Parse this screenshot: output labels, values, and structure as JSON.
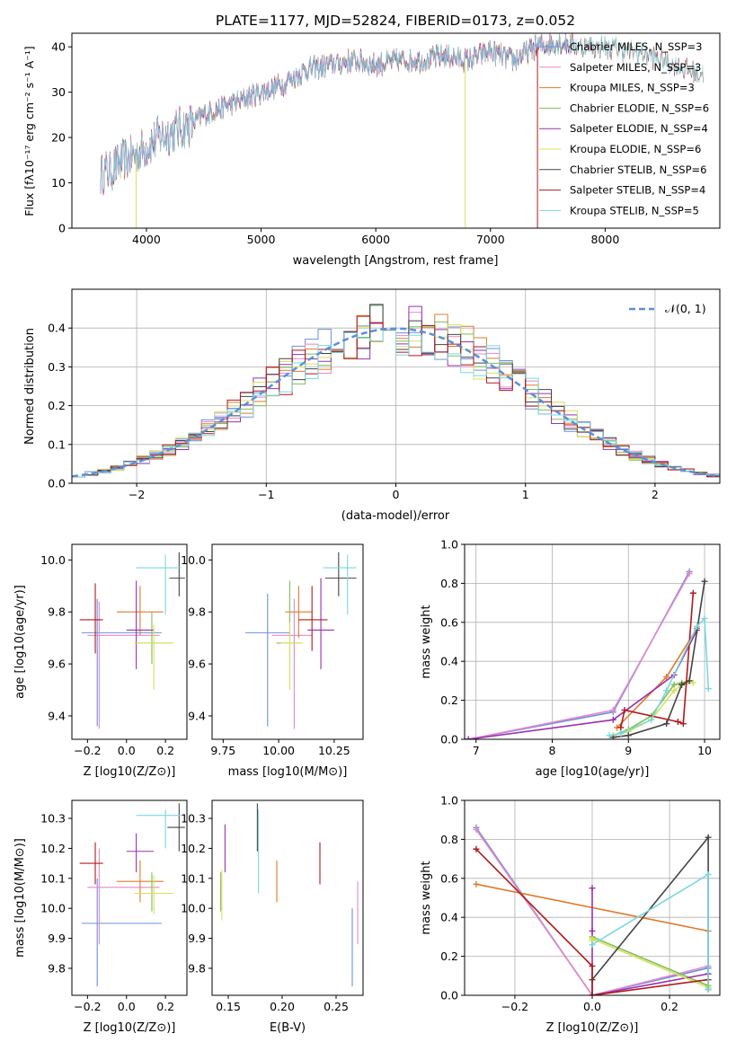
{
  "colors": {
    "Chabrier MILES": "#6b8fe0",
    "Salpeter MILES": "#e48ac8",
    "Kroupa MILES": "#e07a2a",
    "Chabrier ELODIE": "#7fbf5a",
    "Salpeter ELODIE": "#9b30b0",
    "Kroupa ELODIE": "#d8e05a",
    "Chabrier STELIB": "#444444",
    "Salpeter STELIB": "#b01a1a",
    "Kroupa STELIB": "#7ad8e0",
    "gauss": "#5b8fd9"
  },
  "chart_data": [
    {
      "type": "line",
      "title": "PLATE=1177, MJD=52824, FIBERID=0173, z=0.052",
      "xlabel": "wavelength [Angstrom, rest frame]",
      "ylabel": "Flux [fλ10⁻¹⁷ erg cm⁻² s⁻¹ A⁻¹]",
      "xlim": [
        3350,
        9000
      ],
      "ylim": [
        0,
        43
      ],
      "xticks": [
        "4000",
        "5000",
        "6000",
        "7000",
        "8000"
      ],
      "yticks": [
        "0",
        "10",
        "20",
        "30",
        "40"
      ],
      "legend": [
        "Chabrier MILES, N_SSP=3",
        "Salpeter MILES, N_SSP=3",
        "Kroupa MILES, N_SSP=3",
        "Chabrier ELODIE, N_SSP=6",
        "Salpeter ELODIE, N_SSP=4",
        "Kroupa ELODIE, N_SSP=6",
        "Chabrier STELIB, N_SSP=6",
        "Salpeter STELIB, N_SSP=4",
        "Kroupa STELIB, N_SSP=5"
      ],
      "continuum": {
        "x": [
          3600,
          3700,
          3800,
          3900,
          4000,
          4100,
          4200,
          4300,
          4400,
          4500,
          4600,
          4800,
          5000,
          5200,
          5400,
          5600,
          5800,
          6000,
          6200,
          6400,
          6600,
          6800,
          7000,
          7200,
          7400,
          7600,
          7800,
          8000,
          8200,
          8400,
          8600,
          8800
        ],
        "y": [
          12,
          13,
          15,
          16,
          18,
          20,
          21,
          22,
          23,
          25,
          26,
          28,
          30,
          32,
          35,
          36,
          37,
          36,
          37,
          37,
          38,
          37,
          39,
          37,
          40,
          41,
          40,
          40,
          39,
          38,
          36,
          34
        ]
      },
      "legend_position": "upper right"
    },
    {
      "type": "line",
      "xlabel": "(data-model)/error",
      "ylabel": "Normed distribution",
      "xlim": [
        -2.5,
        2.5
      ],
      "ylim": [
        0,
        0.5
      ],
      "xticks": [
        "−2",
        "−1",
        "0",
        "1",
        "2"
      ],
      "yticks": [
        "0.0",
        "0.1",
        "0.2",
        "0.3",
        "0.4"
      ],
      "gauss_label": "𝒩(0, 1)",
      "grid": true,
      "legend_position": "upper right"
    },
    {
      "type": "scatter",
      "xlabel": "Z [log10(Z/Z⊙)]",
      "ylabel": "age [log10(age/yr)]",
      "xlim": [
        -0.28,
        0.31
      ],
      "ylim": [
        9.31,
        10.06
      ],
      "xticks": [
        "−0.2",
        "0.0",
        "0.2"
      ],
      "yticks": [
        "9.4",
        "9.6",
        "9.8",
        "10.0"
      ],
      "points": [
        {
          "s": "Chabrier MILES",
          "x": -0.15,
          "y": 9.72,
          "xe": [
            -0.23,
            0.18
          ],
          "ye": [
            9.36,
            9.85
          ]
        },
        {
          "s": "Salpeter MILES",
          "x": -0.14,
          "y": 9.71,
          "xe": [
            -0.2,
            0.17
          ],
          "ye": [
            9.35,
            9.84
          ]
        },
        {
          "s": "Kroupa MILES",
          "x": 0.07,
          "y": 9.8,
          "xe": [
            -0.05,
            0.19
          ],
          "ye": [
            9.71,
            9.9
          ]
        },
        {
          "s": "Chabrier ELODIE",
          "x": 0.13,
          "y": 9.68,
          "xe": [
            0.04,
            0.23
          ],
          "ye": [
            9.6,
            9.8
          ]
        },
        {
          "s": "Salpeter ELODIE",
          "x": 0.05,
          "y": 9.73,
          "xe": [
            0.0,
            0.14
          ],
          "ye": [
            9.58,
            9.92
          ]
        },
        {
          "s": "Kroupa ELODIE",
          "x": 0.14,
          "y": 9.68,
          "xe": [
            0.04,
            0.24
          ],
          "ye": [
            9.5,
            9.75
          ]
        },
        {
          "s": "Chabrier STELIB",
          "x": 0.27,
          "y": 9.93,
          "xe": [
            0.22,
            0.3
          ],
          "ye": [
            9.86,
            10.03
          ]
        },
        {
          "s": "Salpeter STELIB",
          "x": -0.16,
          "y": 9.77,
          "xe": [
            -0.24,
            -0.12
          ],
          "ye": [
            9.64,
            9.91
          ]
        },
        {
          "s": "Kroupa STELIB",
          "x": 0.2,
          "y": 9.97,
          "xe": [
            0.05,
            0.28
          ],
          "ye": [
            9.79,
            10.02
          ]
        }
      ]
    },
    {
      "type": "scatter",
      "xlabel": "mass [log10(M/M⊙)]",
      "xlim": [
        9.7,
        10.38
      ],
      "ylim": [
        9.31,
        10.06
      ],
      "xticks": [
        "9.75",
        "10.00",
        "10.25"
      ],
      "yticks": [
        "9.4",
        "9.6",
        "9.8",
        "10.0"
      ],
      "points": [
        {
          "s": "Chabrier MILES",
          "x": 9.95,
          "y": 9.72,
          "xe": [
            9.85,
            10.05
          ],
          "ye": [
            9.36,
            9.87
          ]
        },
        {
          "s": "Salpeter MILES",
          "x": 10.07,
          "y": 9.71,
          "xe": [
            9.97,
            10.15
          ],
          "ye": [
            9.35,
            9.85
          ]
        },
        {
          "s": "Kroupa MILES",
          "x": 10.09,
          "y": 9.8,
          "xe": [
            10.03,
            10.15
          ],
          "ye": [
            9.7,
            9.9
          ]
        },
        {
          "s": "Chabrier ELODIE",
          "x": 10.05,
          "y": 9.68,
          "xe": [
            9.99,
            10.1
          ],
          "ye": [
            9.6,
            9.92
          ]
        },
        {
          "s": "Salpeter ELODIE",
          "x": 10.19,
          "y": 9.73,
          "xe": [
            10.13,
            10.25
          ],
          "ye": [
            9.58,
            9.93
          ]
        },
        {
          "s": "Kroupa ELODIE",
          "x": 10.05,
          "y": 9.68,
          "xe": [
            10.01,
            10.11
          ],
          "ye": [
            9.5,
            9.76
          ]
        },
        {
          "s": "Chabrier STELIB",
          "x": 10.27,
          "y": 9.93,
          "xe": [
            10.21,
            10.35
          ],
          "ye": [
            9.86,
            10.03
          ]
        },
        {
          "s": "Salpeter STELIB",
          "x": 10.15,
          "y": 9.77,
          "xe": [
            10.09,
            10.22
          ],
          "ye": [
            9.65,
            9.9
          ]
        },
        {
          "s": "Kroupa STELIB",
          "x": 10.31,
          "y": 9.97,
          "xe": [
            10.2,
            10.35
          ],
          "ye": [
            9.79,
            10.02
          ]
        }
      ]
    },
    {
      "type": "line",
      "xlabel": "age  [log10(age/yr)]",
      "ylabel": "mass weight",
      "xlim": [
        6.85,
        10.2
      ],
      "ylim": [
        0,
        1
      ],
      "xticks": [
        "7",
        "8",
        "9",
        "10"
      ],
      "yticks": [
        "0.0",
        "0.2",
        "0.4",
        "0.6",
        "0.8",
        "1.0"
      ],
      "grid": true,
      "series": [
        {
          "s": "Chabrier MILES",
          "x": [
            6.9,
            8.8,
            9.8
          ],
          "y": [
            0.0,
            0.14,
            0.86
          ]
        },
        {
          "s": "Salpeter MILES",
          "x": [
            6.9,
            8.8,
            9.8
          ],
          "y": [
            0.0,
            0.15,
            0.85
          ]
        },
        {
          "s": "Kroupa MILES",
          "x": [
            8.85,
            9.5,
            9.9
          ],
          "y": [
            0.06,
            0.32,
            0.57
          ]
        },
        {
          "s": "Chabrier ELODIE",
          "x": [
            8.8,
            9.0,
            9.3,
            9.6,
            9.7,
            9.8
          ],
          "y": [
            0.02,
            0.05,
            0.12,
            0.28,
            0.29,
            0.3
          ]
        },
        {
          "s": "Salpeter ELODIE",
          "x": [
            6.9,
            8.8,
            9.6,
            9.9
          ],
          "y": [
            0.0,
            0.1,
            0.33,
            0.56
          ]
        },
        {
          "s": "Kroupa ELODIE",
          "x": [
            8.8,
            9.0,
            9.3,
            9.6,
            9.7,
            9.85
          ],
          "y": [
            0.02,
            0.04,
            0.1,
            0.25,
            0.28,
            0.29
          ]
        },
        {
          "s": "Chabrier STELIB",
          "x": [
            8.8,
            9.0,
            9.5,
            9.7,
            9.8,
            10.0
          ],
          "y": [
            0.01,
            0.02,
            0.08,
            0.28,
            0.3,
            0.81
          ]
        },
        {
          "s": "Salpeter STELIB",
          "x": [
            8.9,
            8.95,
            9.65,
            9.72,
            9.85
          ],
          "y": [
            0.06,
            0.15,
            0.09,
            0.08,
            0.75
          ]
        },
        {
          "s": "Kroupa STELIB",
          "x": [
            8.75,
            8.9,
            9.3,
            9.5,
            9.9,
            10.0,
            10.05
          ],
          "y": [
            0.02,
            0.03,
            0.1,
            0.25,
            0.58,
            0.62,
            0.26
          ]
        }
      ]
    },
    {
      "type": "scatter",
      "xlabel": "Z [log10(Z/Z⊙)]",
      "ylabel": "mass [log10(M/M⊙)]",
      "xlim": [
        -0.28,
        0.31
      ],
      "ylim": [
        9.71,
        10.36
      ],
      "xticks": [
        "−0.2",
        "0.0",
        "0.2"
      ],
      "yticks": [
        "9.8",
        "9.9",
        "10.0",
        "10.1",
        "10.2",
        "10.3"
      ],
      "points": [
        {
          "s": "Chabrier MILES",
          "x": -0.15,
          "y": 9.95,
          "xe": [
            -0.23,
            0.18
          ],
          "ye": [
            9.74,
            10.1
          ]
        },
        {
          "s": "Salpeter MILES",
          "x": -0.14,
          "y": 10.07,
          "xe": [
            -0.2,
            0.17
          ],
          "ye": [
            9.88,
            10.2
          ]
        },
        {
          "s": "Kroupa MILES",
          "x": 0.07,
          "y": 10.09,
          "xe": [
            -0.05,
            0.19
          ],
          "ye": [
            10.02,
            10.16
          ]
        },
        {
          "s": "Chabrier ELODIE",
          "x": 0.13,
          "y": 10.05,
          "xe": [
            0.04,
            0.24
          ],
          "ye": [
            9.99,
            10.12
          ]
        },
        {
          "s": "Salpeter ELODIE",
          "x": 0.05,
          "y": 10.19,
          "xe": [
            0.0,
            0.14
          ],
          "ye": [
            10.12,
            10.25
          ]
        },
        {
          "s": "Kroupa ELODIE",
          "x": 0.14,
          "y": 10.05,
          "xe": [
            0.04,
            0.24
          ],
          "ye": [
            9.98,
            10.11
          ]
        },
        {
          "s": "Chabrier STELIB",
          "x": 0.27,
          "y": 10.27,
          "xe": [
            0.21,
            0.3
          ],
          "ye": [
            10.19,
            10.35
          ]
        },
        {
          "s": "Salpeter STELIB",
          "x": -0.16,
          "y": 10.15,
          "xe": [
            -0.24,
            -0.12
          ],
          "ye": [
            10.08,
            10.22
          ]
        },
        {
          "s": "Kroupa STELIB",
          "x": 0.2,
          "y": 10.31,
          "xe": [
            0.05,
            0.28
          ],
          "ye": [
            10.2,
            10.33
          ]
        }
      ]
    },
    {
      "type": "scatter",
      "xlabel": "E(B-V)",
      "xlim": [
        0.135,
        0.275
      ],
      "ylim": [
        9.71,
        10.36
      ],
      "xticks": [
        "0.15",
        "0.20",
        "0.25"
      ],
      "yticks": [
        "9.8",
        "9.9",
        "10.0",
        "10.1",
        "10.2",
        "10.3"
      ],
      "points": [
        {
          "s": "Chabrier MILES",
          "x": 0.265,
          "y": 9.95,
          "ye": [
            9.74,
            10.0
          ]
        },
        {
          "s": "Salpeter MILES",
          "x": 0.27,
          "y": 10.07,
          "ye": [
            9.88,
            10.09
          ]
        },
        {
          "s": "Kroupa MILES",
          "x": 0.195,
          "y": 10.09,
          "ye": [
            10.02,
            10.16
          ]
        },
        {
          "s": "Chabrier ELODIE",
          "x": 0.143,
          "y": 10.05,
          "ye": [
            9.99,
            10.12
          ]
        },
        {
          "s": "Salpeter ELODIE",
          "x": 0.147,
          "y": 10.19,
          "ye": [
            10.12,
            10.28
          ]
        },
        {
          "s": "Kroupa ELODIE",
          "x": 0.144,
          "y": 10.05,
          "ye": [
            9.96,
            10.13
          ]
        },
        {
          "s": "Chabrier STELIB",
          "x": 0.177,
          "y": 10.27,
          "ye": [
            10.19,
            10.35
          ]
        },
        {
          "s": "Salpeter STELIB",
          "x": 0.235,
          "y": 10.15,
          "ye": [
            10.08,
            10.22
          ]
        },
        {
          "s": "Kroupa STELIB",
          "x": 0.178,
          "y": 10.31,
          "ye": [
            10.05,
            10.33
          ]
        }
      ]
    },
    {
      "type": "line",
      "xlabel": "Z [log10(Z/Z⊙)]",
      "ylabel": "mass weight",
      "xlim": [
        -0.33,
        0.33
      ],
      "ylim": [
        0,
        1
      ],
      "xticks": [
        "−0.2",
        "0.0",
        "0.2"
      ],
      "yticks": [
        "0.0",
        "0.2",
        "0.4",
        "0.6",
        "0.8",
        "1.0"
      ],
      "grid": true,
      "series": [
        {
          "s": "Chabrier MILES",
          "x": [
            -0.3,
            0.0,
            0.3
          ],
          "y": [
            0.86,
            0.0,
            0.14
          ]
        },
        {
          "s": "Salpeter MILES",
          "x": [
            -0.3,
            0.0,
            0.3
          ],
          "y": [
            0.85,
            0.0,
            0.15
          ]
        },
        {
          "s": "Kroupa MILES",
          "x": [
            -0.3,
            0.3
          ],
          "y": [
            0.57,
            0.33
          ]
        },
        {
          "s": "Chabrier ELODIE",
          "x": [
            0.0,
            0.0,
            0.3
          ],
          "y": [
            0.29,
            0.3,
            0.05
          ]
        },
        {
          "s": "Salpeter ELODIE",
          "x": [
            0.0,
            0.0,
            0.0,
            0.3
          ],
          "y": [
            0.55,
            0.33,
            0.0,
            0.11
          ]
        },
        {
          "s": "Kroupa ELODIE",
          "x": [
            0.0,
            0.0,
            0.3
          ],
          "y": [
            0.28,
            0.29,
            0.04
          ]
        },
        {
          "s": "Chabrier STELIB",
          "x": [
            0.0,
            0.3,
            0.3
          ],
          "y": [
            0.08,
            0.81,
            0.03
          ]
        },
        {
          "s": "Salpeter STELIB",
          "x": [
            -0.3,
            0.0,
            0.0,
            0.3
          ],
          "y": [
            0.75,
            0.15,
            0.0,
            0.08
          ]
        },
        {
          "s": "Kroupa STELIB",
          "x": [
            0.0,
            0.3,
            0.3
          ],
          "y": [
            0.26,
            0.62,
            0.03
          ]
        }
      ]
    }
  ]
}
